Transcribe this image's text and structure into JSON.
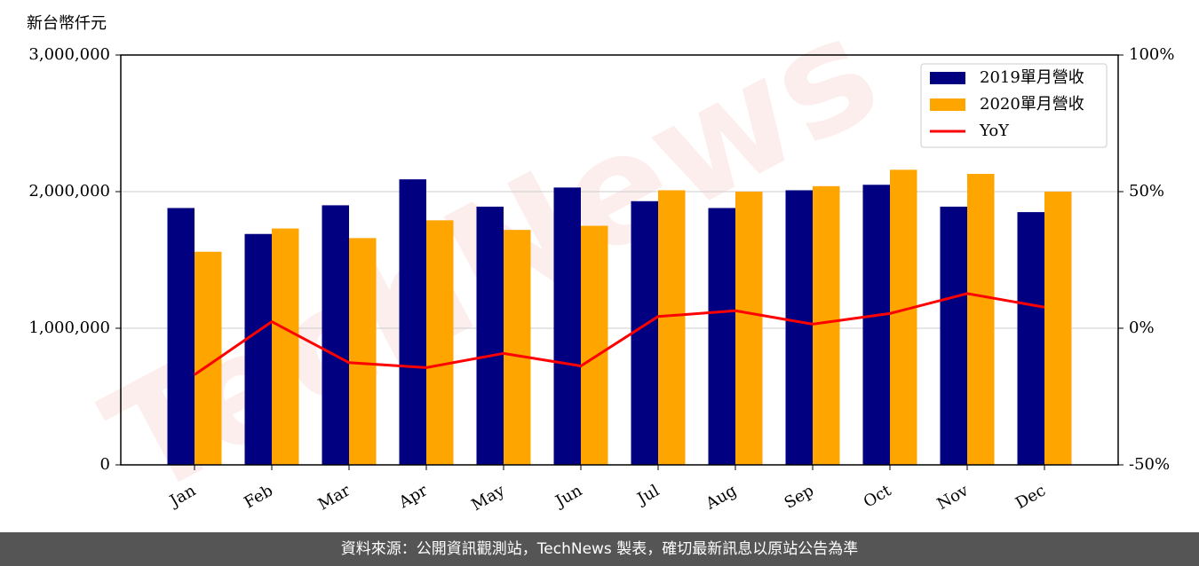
{
  "chart_data": {
    "type": "bar",
    "y_label": "新台幣仟元",
    "watermark": "TechNews",
    "footer": "資料來源：公開資訊觀測站，TechNews 製表，確切最新訊息以原站公告為準",
    "categories": [
      "Jan",
      "Feb",
      "Mar",
      "Apr",
      "May",
      "Jun",
      "Jul",
      "Aug",
      "Sep",
      "Oct",
      "Nov",
      "Dec"
    ],
    "series": [
      {
        "name": "2019單月營收",
        "type": "bar",
        "color": "#000080",
        "values": [
          1880000,
          1690000,
          1900000,
          2090000,
          1890000,
          2030000,
          1930000,
          1880000,
          2010000,
          2050000,
          1890000,
          1850000
        ]
      },
      {
        "name": "2020單月營收",
        "type": "bar",
        "color": "#ffa500",
        "values": [
          1560000,
          1730000,
          1660000,
          1790000,
          1720000,
          1750000,
          2010000,
          2000000,
          2040000,
          2160000,
          2130000,
          2000000
        ]
      },
      {
        "name": "YoY",
        "type": "line",
        "axis": "y2",
        "color": "#ff0000",
        "values": [
          -17.0,
          2.4,
          -12.6,
          -14.4,
          -9.2,
          -13.8,
          4.3,
          6.4,
          1.5,
          5.4,
          12.7,
          7.7
        ]
      }
    ],
    "ylim": [
      0,
      3000000
    ],
    "yticks": [
      0,
      {
        "value": 1000000,
        "label": "1,000,000"
      },
      {
        "value": 2000000,
        "label": "2,000,000"
      },
      {
        "value": 3000000,
        "label": "3,000,000"
      }
    ],
    "y2lim": [
      -50,
      100
    ],
    "y2ticks": [
      {
        "value": -50,
        "label": "-50%"
      },
      {
        "value": 0,
        "label": "0%"
      },
      {
        "value": 50,
        "label": "50%"
      },
      {
        "value": 100,
        "label": "100%"
      }
    ],
    "grid": true,
    "legend": "upper right"
  }
}
